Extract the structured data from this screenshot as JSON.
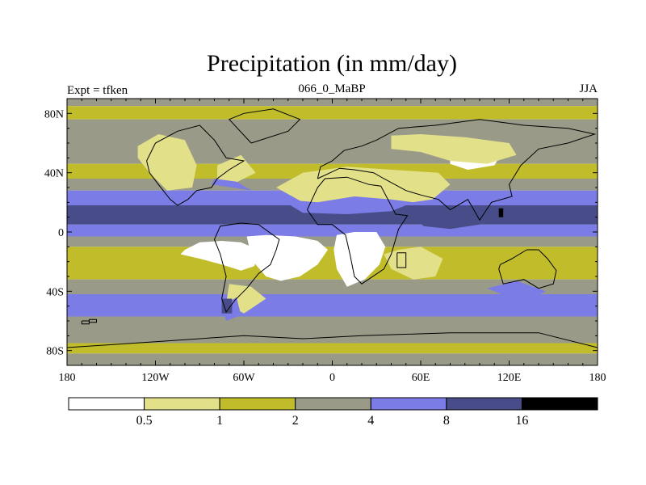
{
  "figure": {
    "title": "Precipitation (in mm/day)",
    "left_label": "Expt = tfken",
    "center_label": "066_0_MaBP",
    "right_label": "JJA"
  },
  "chart_data": {
    "type": "heatmap",
    "projection": "cylindrical-equidistant",
    "xlim": [
      -180,
      180
    ],
    "ylim": [
      -90,
      90
    ],
    "x_ticks": [
      {
        "value": -180,
        "label": "180"
      },
      {
        "value": -120,
        "label": "120W"
      },
      {
        "value": -60,
        "label": "60W"
      },
      {
        "value": 0,
        "label": "0"
      },
      {
        "value": 60,
        "label": "60E"
      },
      {
        "value": 120,
        "label": "120E"
      },
      {
        "value": 180,
        "label": "180"
      }
    ],
    "y_ticks": [
      {
        "value": 80,
        "label": "80N"
      },
      {
        "value": 40,
        "label": "40N"
      },
      {
        "value": 0,
        "label": "0"
      },
      {
        "value": -40,
        "label": "40S"
      },
      {
        "value": -80,
        "label": "80S"
      }
    ],
    "levels": [
      0.5,
      1,
      2,
      4,
      8,
      16
    ],
    "level_labels": [
      "0.5",
      "1",
      "2",
      "4",
      "8",
      "16"
    ],
    "colors": [
      "#ffffff",
      "#e3e08a",
      "#c1bd2a",
      "#9a9a88",
      "#7b7ce5",
      "#484d8a",
      "#000000"
    ],
    "bands": [
      {
        "lat_top": 90,
        "lat_bottom": 85,
        "bin": 3
      },
      {
        "lat_top": 85,
        "lat_bottom": 76,
        "bin": 2
      },
      {
        "lat_top": 76,
        "lat_bottom": 46,
        "bin": 3
      },
      {
        "lat_top": 46,
        "lat_bottom": 36,
        "bin": 2
      },
      {
        "lat_top": 36,
        "lat_bottom": 28,
        "bin": 3
      },
      {
        "lat_top": 28,
        "lat_bottom": 18,
        "bin": 4
      },
      {
        "lat_top": 18,
        "lat_bottom": 5,
        "bin": 5
      },
      {
        "lat_top": 5,
        "lat_bottom": -3,
        "bin": 4
      },
      {
        "lat_top": -3,
        "lat_bottom": -10,
        "bin": 3
      },
      {
        "lat_top": -10,
        "lat_bottom": -32,
        "bin": 2
      },
      {
        "lat_top": -32,
        "lat_bottom": -42,
        "bin": 3
      },
      {
        "lat_top": -42,
        "lat_bottom": -57,
        "bin": 4
      },
      {
        "lat_top": -57,
        "lat_bottom": -75,
        "bin": 3
      },
      {
        "lat_top": -75,
        "lat_bottom": -82,
        "bin": 2
      },
      {
        "lat_top": -82,
        "lat_bottom": -90,
        "bin": 3
      }
    ],
    "regions": [
      {
        "bin": 0,
        "points": [
          [
            -100,
            -12
          ],
          [
            -90,
            -7
          ],
          [
            -75,
            -6
          ],
          [
            -62,
            -7
          ],
          [
            -55,
            -10
          ],
          [
            -50,
            -16
          ],
          [
            -53,
            -23
          ],
          [
            -62,
            -26
          ],
          [
            -75,
            -22
          ],
          [
            -90,
            -18
          ],
          [
            -103,
            -15
          ]
        ]
      },
      {
        "bin": 0,
        "points": [
          [
            -58,
            -3
          ],
          [
            -45,
            -2
          ],
          [
            -25,
            -3
          ],
          [
            -10,
            -6
          ],
          [
            -3,
            -12
          ],
          [
            -10,
            -22
          ],
          [
            -22,
            -30
          ],
          [
            -35,
            -33
          ],
          [
            -45,
            -30
          ],
          [
            -52,
            -22
          ],
          [
            -56,
            -12
          ]
        ]
      },
      {
        "bin": 0,
        "points": [
          [
            3,
            -2
          ],
          [
            15,
            0
          ],
          [
            30,
            0
          ],
          [
            36,
            -10
          ],
          [
            32,
            -22
          ],
          [
            22,
            -32
          ],
          [
            10,
            -37
          ],
          [
            3,
            -25
          ],
          [
            1,
            -12
          ]
        ]
      },
      {
        "bin": 0,
        "points": [
          [
            -110,
            50
          ],
          [
            -100,
            57
          ],
          [
            -95,
            45
          ],
          [
            -98,
            35
          ],
          [
            -105,
            30
          ],
          [
            -112,
            37
          ]
        ]
      },
      {
        "bin": 0,
        "points": [
          [
            -22,
            25
          ],
          [
            -10,
            37
          ],
          [
            10,
            38
          ],
          [
            30,
            36
          ],
          [
            45,
            35
          ],
          [
            60,
            33
          ],
          [
            70,
            27
          ],
          [
            60,
            22
          ],
          [
            40,
            21
          ],
          [
            20,
            22
          ],
          [
            0,
            21
          ]
        ]
      },
      {
        "bin": 0,
        "points": [
          [
            80,
            58
          ],
          [
            100,
            60
          ],
          [
            115,
            53
          ],
          [
            110,
            45
          ],
          [
            92,
            42
          ],
          [
            80,
            46
          ]
        ]
      },
      {
        "bin": 1,
        "points": [
          [
            -132,
            58
          ],
          [
            -118,
            66
          ],
          [
            -100,
            62
          ],
          [
            -92,
            45
          ],
          [
            -95,
            30
          ],
          [
            -112,
            28
          ],
          [
            -124,
            40
          ],
          [
            -132,
            50
          ]
        ]
      },
      {
        "bin": 1,
        "points": [
          [
            -78,
            45
          ],
          [
            -62,
            52
          ],
          [
            -52,
            40
          ],
          [
            -68,
            32
          ],
          [
            -78,
            36
          ]
        ]
      },
      {
        "bin": 1,
        "points": [
          [
            -38,
            30
          ],
          [
            -20,
            40
          ],
          [
            10,
            44
          ],
          [
            40,
            42
          ],
          [
            72,
            40
          ],
          [
            80,
            32
          ],
          [
            68,
            22
          ],
          [
            40,
            18
          ],
          [
            10,
            18
          ],
          [
            -20,
            20
          ]
        ]
      },
      {
        "bin": 1,
        "points": [
          [
            40,
            65
          ],
          [
            60,
            66
          ],
          [
            90,
            64
          ],
          [
            120,
            60
          ],
          [
            125,
            52
          ],
          [
            105,
            46
          ],
          [
            80,
            48
          ],
          [
            60,
            54
          ],
          [
            40,
            56
          ]
        ]
      },
      {
        "bin": 1,
        "points": [
          [
            35,
            -15
          ],
          [
            45,
            -12
          ],
          [
            60,
            -10
          ],
          [
            75,
            -18
          ],
          [
            70,
            -30
          ],
          [
            55,
            -32
          ],
          [
            40,
            -25
          ]
        ]
      },
      {
        "bin": 1,
        "points": [
          [
            -70,
            -35
          ],
          [
            -55,
            -37
          ],
          [
            -45,
            -45
          ],
          [
            -60,
            -55
          ],
          [
            -72,
            -48
          ]
        ]
      },
      {
        "bin": 4,
        "points": [
          [
            -82,
            32
          ],
          [
            -68,
            30
          ],
          [
            -55,
            28
          ],
          [
            -65,
            34
          ],
          [
            -80,
            36
          ]
        ]
      },
      {
        "bin": 4,
        "points": [
          [
            -35,
            22
          ],
          [
            -10,
            20
          ],
          [
            15,
            24
          ],
          [
            40,
            22
          ],
          [
            55,
            20
          ],
          [
            40,
            14
          ],
          [
            10,
            12
          ],
          [
            -20,
            13
          ]
        ]
      },
      {
        "bin": 4,
        "points": [
          [
            -75,
            -50
          ],
          [
            -65,
            -44
          ],
          [
            -62,
            -56
          ],
          [
            -72,
            -60
          ]
        ]
      },
      {
        "bin": 4,
        "points": [
          [
            105,
            -38
          ],
          [
            125,
            -33
          ],
          [
            145,
            -40
          ],
          [
            130,
            -48
          ]
        ]
      },
      {
        "bin": 5,
        "points": [
          [
            55,
            10
          ],
          [
            72,
            12
          ],
          [
            90,
            14
          ],
          [
            100,
            5
          ],
          [
            80,
            2
          ],
          [
            62,
            4
          ]
        ]
      },
      {
        "bin": 5,
        "points": [
          [
            112,
            17
          ],
          [
            130,
            18
          ],
          [
            155,
            14
          ],
          [
            150,
            6
          ],
          [
            130,
            7
          ],
          [
            115,
            10
          ]
        ]
      },
      {
        "bin": 5,
        "points": [
          [
            -178,
            16
          ],
          [
            -150,
            14
          ],
          [
            -125,
            12
          ],
          [
            -150,
            6
          ],
          [
            -178,
            8
          ]
        ]
      },
      {
        "bin": 5,
        "points": [
          [
            -75,
            -45
          ],
          [
            -68,
            -45
          ],
          [
            -68,
            -55
          ],
          [
            -75,
            -55
          ]
        ]
      },
      {
        "bin": 6,
        "points": [
          [
            113,
            16
          ],
          [
            116,
            16
          ],
          [
            116,
            10
          ],
          [
            113,
            10
          ]
        ]
      }
    ],
    "coastlines": [
      [
        [
          -126,
          48
        ],
        [
          -120,
          60
        ],
        [
          -105,
          68
        ],
        [
          -90,
          72
        ],
        [
          -80,
          62
        ],
        [
          -72,
          50
        ],
        [
          -60,
          48
        ],
        [
          -70,
          42
        ],
        [
          -78,
          36
        ],
        [
          -82,
          30
        ],
        [
          -92,
          28
        ],
        [
          -98,
          22
        ],
        [
          -105,
          18
        ],
        [
          -110,
          22
        ],
        [
          -118,
          32
        ],
        [
          -124,
          40
        ],
        [
          -126,
          48
        ]
      ],
      [
        [
          -62,
          6
        ],
        [
          -50,
          5
        ],
        [
          -36,
          -5
        ],
        [
          -38,
          -12
        ],
        [
          -42,
          -22
        ],
        [
          -50,
          -28
        ],
        [
          -58,
          -38
        ],
        [
          -66,
          -46
        ],
        [
          -72,
          -54
        ],
        [
          -75,
          -45
        ],
        [
          -72,
          -30
        ],
        [
          -76,
          -15
        ],
        [
          -80,
          -5
        ],
        [
          -76,
          4
        ],
        [
          -62,
          6
        ]
      ],
      [
        [
          -17,
          15
        ],
        [
          -10,
          30
        ],
        [
          -5,
          36
        ],
        [
          10,
          37
        ],
        [
          25,
          32
        ],
        [
          33,
          31
        ],
        [
          43,
          12
        ],
        [
          51,
          11
        ],
        [
          45,
          2
        ],
        [
          40,
          -15
        ],
        [
          35,
          -25
        ],
        [
          20,
          -35
        ],
        [
          15,
          -30
        ],
        [
          12,
          -15
        ],
        [
          9,
          -2
        ],
        [
          0,
          5
        ],
        [
          -10,
          5
        ],
        [
          -17,
          15
        ]
      ],
      [
        [
          -10,
          36
        ],
        [
          -8,
          44
        ],
        [
          0,
          48
        ],
        [
          8,
          55
        ],
        [
          20,
          58
        ],
        [
          30,
          62
        ],
        [
          45,
          70
        ],
        [
          70,
          72
        ],
        [
          100,
          76
        ],
        [
          130,
          72
        ],
        [
          160,
          70
        ],
        [
          178,
          66
        ],
        [
          160,
          60
        ],
        [
          140,
          56
        ],
        [
          128,
          45
        ],
        [
          120,
          32
        ],
        [
          122,
          24
        ],
        [
          108,
          20
        ],
        [
          100,
          8
        ],
        [
          92,
          22
        ],
        [
          80,
          15
        ],
        [
          72,
          22
        ],
        [
          60,
          25
        ],
        [
          50,
          28
        ],
        [
          35,
          36
        ],
        [
          28,
          40
        ],
        [
          15,
          42
        ],
        [
          5,
          43
        ],
        [
          -10,
          36
        ]
      ],
      [
        [
          114,
          -22
        ],
        [
          122,
          -18
        ],
        [
          132,
          -12
        ],
        [
          140,
          -12
        ],
        [
          146,
          -18
        ],
        [
          152,
          -26
        ],
        [
          150,
          -35
        ],
        [
          140,
          -38
        ],
        [
          130,
          -32
        ],
        [
          116,
          -35
        ],
        [
          113,
          -25
        ],
        [
          114,
          -22
        ]
      ],
      [
        [
          44,
          -14
        ],
        [
          50,
          -14
        ],
        [
          50,
          -24
        ],
        [
          44,
          -24
        ],
        [
          44,
          -14
        ]
      ],
      [
        [
          -55,
          60
        ],
        [
          -30,
          68
        ],
        [
          -22,
          76
        ],
        [
          -40,
          83
        ],
        [
          -60,
          80
        ],
        [
          -70,
          76
        ],
        [
          -55,
          60
        ]
      ],
      [
        [
          -180,
          -78
        ],
        [
          -120,
          -74
        ],
        [
          -60,
          -70
        ],
        [
          -20,
          -72
        ],
        [
          20,
          -70
        ],
        [
          80,
          -68
        ],
        [
          140,
          -68
        ],
        [
          180,
          -78
        ]
      ],
      [
        [
          -170,
          -60
        ],
        [
          -165,
          -60
        ],
        [
          -165,
          -62
        ],
        [
          -170,
          -62
        ],
        [
          -170,
          -60
        ]
      ],
      [
        [
          -165,
          -59
        ],
        [
          -160,
          -59
        ],
        [
          -160,
          -61
        ],
        [
          -165,
          -61
        ],
        [
          -165,
          -59
        ]
      ]
    ]
  }
}
